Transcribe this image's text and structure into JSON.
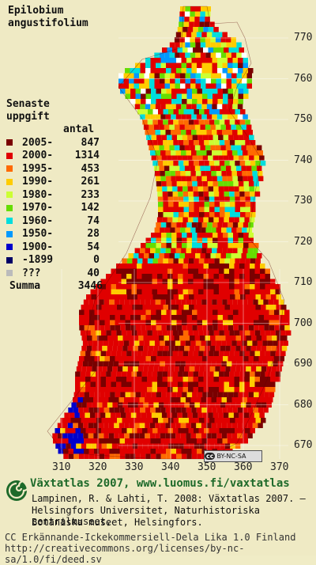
{
  "species": {
    "line1": "Epilobium",
    "line2": "angustifolium"
  },
  "legend": {
    "title1": "Senaste",
    "title2": "uppgift",
    "count_header": "antal",
    "rows": [
      {
        "label": "2005-",
        "count": "847",
        "color": "#7a0000"
      },
      {
        "label": "2000-",
        "count": "1314",
        "color": "#e00000"
      },
      {
        "label": "1995-",
        "count": "453",
        "color": "#ff6a00"
      },
      {
        "label": "1990-",
        "count": "261",
        "color": "#ffcc00"
      },
      {
        "label": "1980-",
        "count": "233",
        "color": "#ccff33"
      },
      {
        "label": "1970-",
        "count": "142",
        "color": "#66dd00"
      },
      {
        "label": "1960-",
        "count": "74",
        "color": "#00dddd"
      },
      {
        "label": "1950-",
        "count": "28",
        "color": "#0099ff"
      },
      {
        "label": "1900-",
        "count": "54",
        "color": "#0000cc"
      },
      {
        "label": "-1899",
        "count": "0",
        "color": "#000066"
      },
      {
        "label": "???",
        "count": "40",
        "color": "#bbbbbb"
      }
    ],
    "sum_label": "Summa",
    "sum_value": "3446"
  },
  "axis": {
    "y_ticks": [
      "770",
      "760",
      "750",
      "740",
      "730",
      "720",
      "710",
      "700",
      "690",
      "680",
      "670"
    ],
    "x_ticks": [
      "310",
      "320",
      "330",
      "340",
      "350",
      "360",
      "370"
    ]
  },
  "cc_badge": "BY-NC-SA",
  "footer": {
    "title": "Växtatlas 2007, www.luomus.fi/vaxtatlas",
    "line1": "Lampinen, R. & Lahti, T. 2008: Växtatlas 2007. –",
    "line2": "Helsingfors Universitet, Naturhistoriska centralmuseet,",
    "line3": "Botaniska museet, Helsingfors.",
    "license1": "CC Erkännande-Ickekommersiell-Dela Lika 1.0 Finland",
    "license2": "http://creativecommons.org/licenses/by-nc-sa/1.0/fi/deed.sv"
  }
}
